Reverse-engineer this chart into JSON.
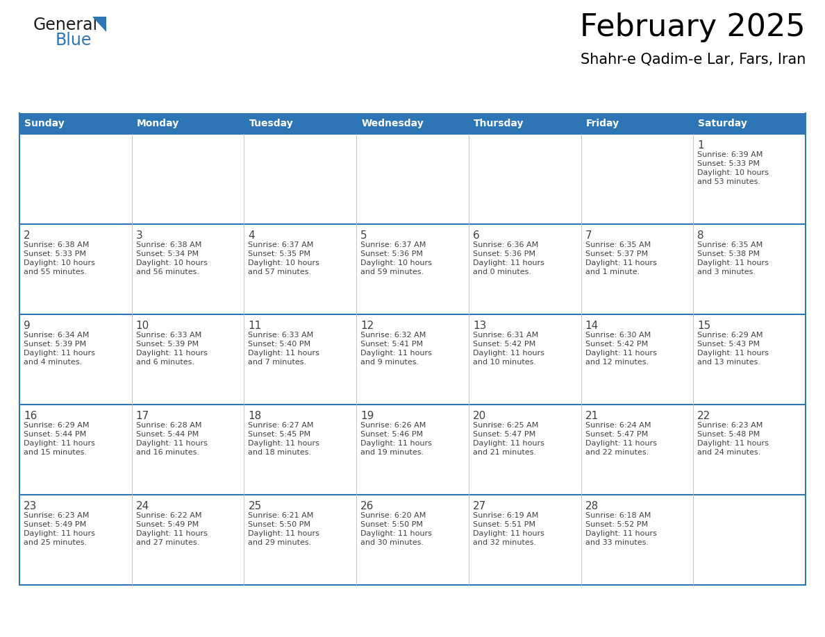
{
  "title": "February 2025",
  "subtitle": "Shahr-e Qadim-e Lar, Fars, Iran",
  "days_of_week": [
    "Sunday",
    "Monday",
    "Tuesday",
    "Wednesday",
    "Thursday",
    "Friday",
    "Saturday"
  ],
  "header_bg": "#2E75B6",
  "header_text": "#FFFFFF",
  "cell_bg": "#FFFFFF",
  "border_color": "#2E75B6",
  "grid_color": "#AAAAAA",
  "text_color": "#404040",
  "calendar_data": [
    [
      null,
      null,
      null,
      null,
      null,
      null,
      {
        "day": 1,
        "sunrise": "6:39 AM",
        "sunset": "5:33 PM",
        "daylight": "10 hours\nand 53 minutes."
      }
    ],
    [
      {
        "day": 2,
        "sunrise": "6:38 AM",
        "sunset": "5:33 PM",
        "daylight": "10 hours\nand 55 minutes."
      },
      {
        "day": 3,
        "sunrise": "6:38 AM",
        "sunset": "5:34 PM",
        "daylight": "10 hours\nand 56 minutes."
      },
      {
        "day": 4,
        "sunrise": "6:37 AM",
        "sunset": "5:35 PM",
        "daylight": "10 hours\nand 57 minutes."
      },
      {
        "day": 5,
        "sunrise": "6:37 AM",
        "sunset": "5:36 PM",
        "daylight": "10 hours\nand 59 minutes."
      },
      {
        "day": 6,
        "sunrise": "6:36 AM",
        "sunset": "5:36 PM",
        "daylight": "11 hours\nand 0 minutes."
      },
      {
        "day": 7,
        "sunrise": "6:35 AM",
        "sunset": "5:37 PM",
        "daylight": "11 hours\nand 1 minute."
      },
      {
        "day": 8,
        "sunrise": "6:35 AM",
        "sunset": "5:38 PM",
        "daylight": "11 hours\nand 3 minutes."
      }
    ],
    [
      {
        "day": 9,
        "sunrise": "6:34 AM",
        "sunset": "5:39 PM",
        "daylight": "11 hours\nand 4 minutes."
      },
      {
        "day": 10,
        "sunrise": "6:33 AM",
        "sunset": "5:39 PM",
        "daylight": "11 hours\nand 6 minutes."
      },
      {
        "day": 11,
        "sunrise": "6:33 AM",
        "sunset": "5:40 PM",
        "daylight": "11 hours\nand 7 minutes."
      },
      {
        "day": 12,
        "sunrise": "6:32 AM",
        "sunset": "5:41 PM",
        "daylight": "11 hours\nand 9 minutes."
      },
      {
        "day": 13,
        "sunrise": "6:31 AM",
        "sunset": "5:42 PM",
        "daylight": "11 hours\nand 10 minutes."
      },
      {
        "day": 14,
        "sunrise": "6:30 AM",
        "sunset": "5:42 PM",
        "daylight": "11 hours\nand 12 minutes."
      },
      {
        "day": 15,
        "sunrise": "6:29 AM",
        "sunset": "5:43 PM",
        "daylight": "11 hours\nand 13 minutes."
      }
    ],
    [
      {
        "day": 16,
        "sunrise": "6:29 AM",
        "sunset": "5:44 PM",
        "daylight": "11 hours\nand 15 minutes."
      },
      {
        "day": 17,
        "sunrise": "6:28 AM",
        "sunset": "5:44 PM",
        "daylight": "11 hours\nand 16 minutes."
      },
      {
        "day": 18,
        "sunrise": "6:27 AM",
        "sunset": "5:45 PM",
        "daylight": "11 hours\nand 18 minutes."
      },
      {
        "day": 19,
        "sunrise": "6:26 AM",
        "sunset": "5:46 PM",
        "daylight": "11 hours\nand 19 minutes."
      },
      {
        "day": 20,
        "sunrise": "6:25 AM",
        "sunset": "5:47 PM",
        "daylight": "11 hours\nand 21 minutes."
      },
      {
        "day": 21,
        "sunrise": "6:24 AM",
        "sunset": "5:47 PM",
        "daylight": "11 hours\nand 22 minutes."
      },
      {
        "day": 22,
        "sunrise": "6:23 AM",
        "sunset": "5:48 PM",
        "daylight": "11 hours\nand 24 minutes."
      }
    ],
    [
      {
        "day": 23,
        "sunrise": "6:23 AM",
        "sunset": "5:49 PM",
        "daylight": "11 hours\nand 25 minutes."
      },
      {
        "day": 24,
        "sunrise": "6:22 AM",
        "sunset": "5:49 PM",
        "daylight": "11 hours\nand 27 minutes."
      },
      {
        "day": 25,
        "sunrise": "6:21 AM",
        "sunset": "5:50 PM",
        "daylight": "11 hours\nand 29 minutes."
      },
      {
        "day": 26,
        "sunrise": "6:20 AM",
        "sunset": "5:50 PM",
        "daylight": "11 hours\nand 30 minutes."
      },
      {
        "day": 27,
        "sunrise": "6:19 AM",
        "sunset": "5:51 PM",
        "daylight": "11 hours\nand 32 minutes."
      },
      {
        "day": 28,
        "sunrise": "6:18 AM",
        "sunset": "5:52 PM",
        "daylight": "11 hours\nand 33 minutes."
      },
      null
    ]
  ]
}
